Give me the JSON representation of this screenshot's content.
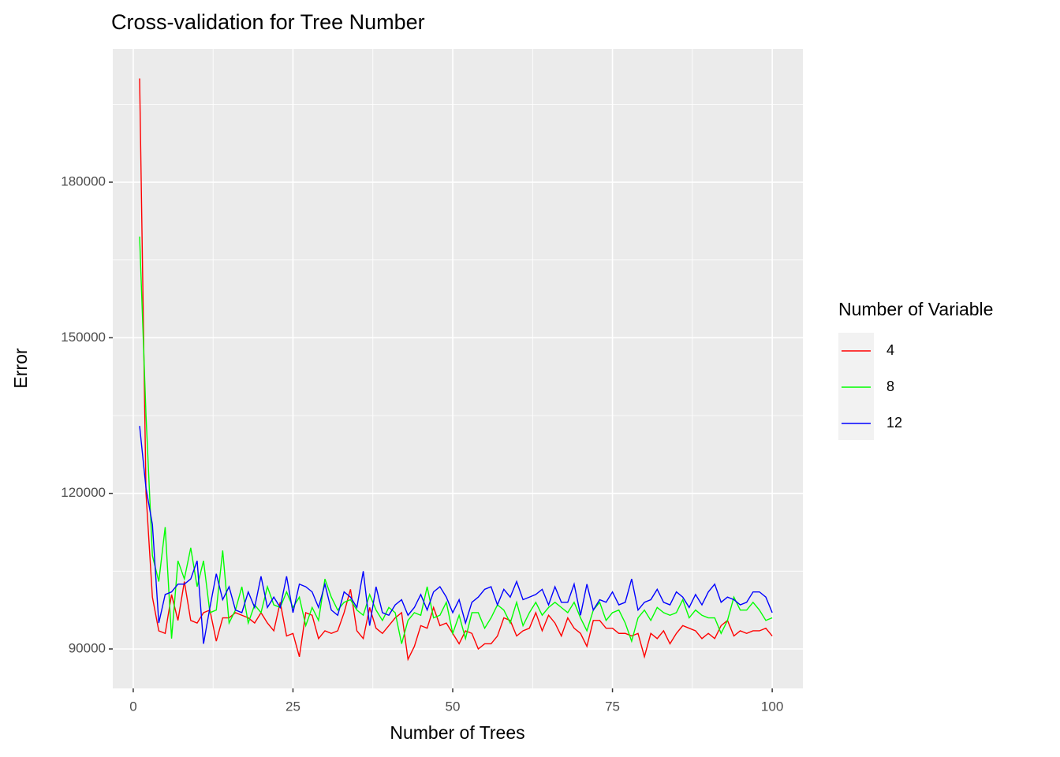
{
  "chart_data": {
    "type": "line",
    "title": "Cross-validation for Tree Number",
    "x_label": "Number of Trees",
    "y_label": "Error",
    "legend_title": "Number of Variable",
    "x": [
      1,
      2,
      3,
      4,
      5,
      6,
      7,
      8,
      9,
      10,
      11,
      12,
      13,
      14,
      15,
      16,
      17,
      18,
      19,
      20,
      21,
      22,
      23,
      24,
      25,
      26,
      27,
      28,
      29,
      30,
      31,
      32,
      33,
      34,
      35,
      36,
      37,
      38,
      39,
      40,
      41,
      42,
      43,
      44,
      45,
      46,
      47,
      48,
      49,
      50,
      51,
      52,
      53,
      54,
      55,
      56,
      57,
      58,
      59,
      60,
      61,
      62,
      63,
      64,
      65,
      66,
      67,
      68,
      69,
      70,
      71,
      72,
      73,
      74,
      75,
      76,
      77,
      78,
      79,
      80,
      81,
      82,
      83,
      84,
      85,
      86,
      87,
      88,
      89,
      90,
      91,
      92,
      93,
      94,
      95,
      96,
      97,
      98,
      99,
      100
    ],
    "series": [
      {
        "name": "4",
        "color": "#ff0000",
        "values": [
          200000,
          120000,
          100000,
          93500,
          93000,
          100500,
          95500,
          103000,
          95500,
          95000,
          97000,
          97500,
          91500,
          96000,
          96000,
          97000,
          96500,
          96000,
          95000,
          97000,
          95000,
          93500,
          99000,
          92500,
          93000,
          88500,
          97000,
          96500,
          92000,
          93500,
          93000,
          93500,
          97000,
          101500,
          93500,
          92000,
          98000,
          94000,
          93000,
          94500,
          96000,
          97000,
          88000,
          90500,
          94500,
          94000,
          98000,
          94500,
          95000,
          93000,
          91000,
          93500,
          93000,
          90000,
          91000,
          91000,
          92500,
          96000,
          95500,
          92500,
          93500,
          94000,
          97000,
          93500,
          96500,
          95000,
          92500,
          96000,
          94000,
          93000,
          90500,
          95500,
          95500,
          94000,
          94000,
          93000,
          93000,
          92500,
          93000,
          88500,
          93000,
          92000,
          93500,
          91000,
          93000,
          94500,
          94000,
          93500,
          92000,
          93000,
          92000,
          94500,
          95500,
          92500,
          93500,
          93000,
          93500,
          93500,
          94000,
          92500
        ]
      },
      {
        "name": "8",
        "color": "#00ff00",
        "values": [
          169500,
          135000,
          108000,
          103000,
          113500,
          92000,
          107000,
          103500,
          109500,
          102000,
          107000,
          97000,
          97500,
          109000,
          95000,
          97500,
          102000,
          95000,
          98500,
          97000,
          102000,
          98500,
          98000,
          101000,
          98000,
          100000,
          94500,
          98000,
          95500,
          103500,
          100000,
          97500,
          99000,
          99500,
          97500,
          96500,
          100500,
          97500,
          95500,
          98000,
          97000,
          91000,
          95500,
          97000,
          96500,
          102000,
          96000,
          96500,
          99000,
          93000,
          96500,
          92000,
          97000,
          97000,
          94000,
          96000,
          98500,
          97500,
          95000,
          99000,
          94500,
          97000,
          99000,
          96500,
          98000,
          99000,
          98000,
          97000,
          99000,
          96000,
          93500,
          97500,
          99000,
          95500,
          97000,
          97500,
          95000,
          91500,
          96000,
          97500,
          95500,
          98000,
          97000,
          96500,
          97000,
          99500,
          96000,
          97500,
          96500,
          96000,
          96000,
          93000,
          95500,
          100000,
          97500,
          97500,
          99000,
          97500,
          95500,
          96000
        ]
      },
      {
        "name": "12",
        "color": "#0000ff",
        "values": [
          133000,
          121000,
          114000,
          95000,
          100500,
          101000,
          102500,
          102500,
          103500,
          107000,
          91000,
          98000,
          104500,
          99500,
          102000,
          97500,
          97000,
          101000,
          98000,
          104000,
          98000,
          100000,
          98000,
          104000,
          97000,
          102500,
          102000,
          101000,
          98000,
          102500,
          97500,
          96500,
          101000,
          100000,
          98000,
          105000,
          94500,
          102000,
          97000,
          96500,
          98500,
          99500,
          96500,
          98000,
          100500,
          97500,
          101000,
          102000,
          100000,
          97000,
          99500,
          95000,
          99000,
          100000,
          101500,
          102000,
          98500,
          101500,
          100000,
          103000,
          99500,
          100000,
          100500,
          101500,
          98500,
          102000,
          99000,
          99000,
          102500,
          96500,
          102500,
          97500,
          99500,
          99000,
          101000,
          98500,
          99000,
          103500,
          97500,
          99000,
          99500,
          101500,
          99000,
          98500,
          101000,
          100000,
          98000,
          100500,
          98500,
          101000,
          102500,
          99000,
          100000,
          99500,
          98500,
          99000,
          101000,
          101000,
          100000,
          97000
        ]
      }
    ],
    "xlim": [
      -3.2,
      104.8
    ],
    "xticks": [
      0,
      25,
      50,
      75,
      100
    ],
    "xminor_ticks": [
      12.5,
      37.5,
      62.5,
      87.5
    ],
    "ylim": [
      82397,
      205697
    ],
    "yticks": [
      90000,
      120000,
      150000,
      180000
    ],
    "yminor_ticks": [
      105000,
      135000,
      165000,
      195000
    ],
    "grid": true,
    "legend_position": "right"
  }
}
